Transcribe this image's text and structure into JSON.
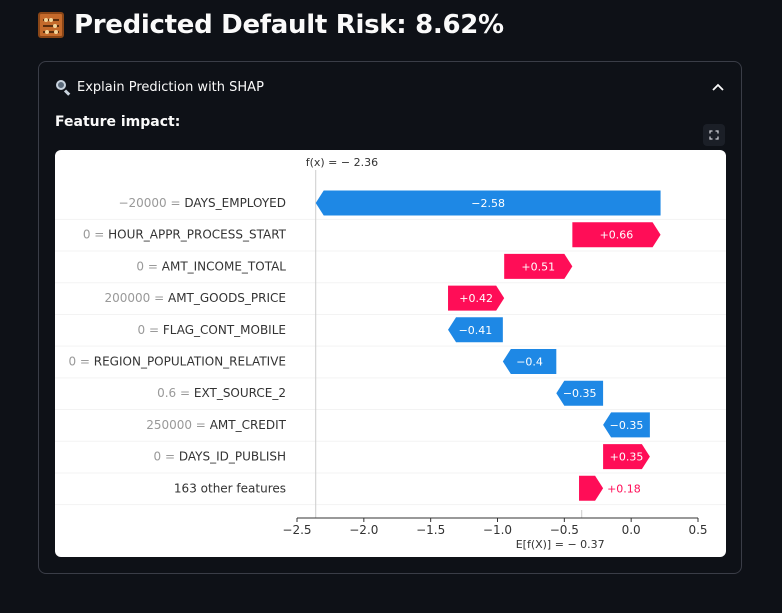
{
  "header": {
    "title": "Predicted Default Risk: 8.62%",
    "icon": "abacus-icon"
  },
  "expander": {
    "label": "Explain Prediction with SHAP",
    "icon": "magnifier-icon",
    "expanded": true,
    "toggle_icon": "chevron-up-icon"
  },
  "section": {
    "label": "Feature impact:",
    "fullscreen_icon": "fullscreen-icon"
  },
  "chart_data": {
    "type": "waterfall",
    "fx_label": "f(x) = − 2.36",
    "efx_label": "E[f(X)] = − 0.37",
    "fx": -2.36,
    "base_value": -0.37,
    "xlim": [
      -2.5,
      0.5
    ],
    "xticks": [
      -2.5,
      -2.0,
      -1.5,
      -1.0,
      -0.5,
      0.0,
      0.5
    ],
    "xtick_labels": [
      "−2.5",
      "−2.0",
      "−1.5",
      "−1.0",
      "−0.5",
      "0.0",
      "0.5"
    ],
    "grid": false,
    "colors": {
      "positive": "#ff0d57",
      "negative": "#1e88e5",
      "axis": "#333333",
      "muted": "#999999"
    },
    "features": [
      {
        "value": "−20000",
        "name": "DAYS_EMPLOYED",
        "shap": -2.58,
        "label": "−2.58"
      },
      {
        "value": "0",
        "name": "HOUR_APPR_PROCESS_START",
        "shap": 0.66,
        "label": "+0.66"
      },
      {
        "value": "0",
        "name": "AMT_INCOME_TOTAL",
        "shap": 0.51,
        "label": "+0.51"
      },
      {
        "value": "200000",
        "name": "AMT_GOODS_PRICE",
        "shap": 0.42,
        "label": "+0.42"
      },
      {
        "value": "0",
        "name": "FLAG_CONT_MOBILE",
        "shap": -0.41,
        "label": "−0.41"
      },
      {
        "value": "0",
        "name": "REGION_POPULATION_RELATIVE",
        "shap": -0.4,
        "label": "−0.4"
      },
      {
        "value": "0.6",
        "name": "EXT_SOURCE_2",
        "shap": -0.35,
        "label": "−0.35"
      },
      {
        "value": "250000",
        "name": "AMT_CREDIT",
        "shap": -0.35,
        "label": "−0.35"
      },
      {
        "value": "0",
        "name": "DAYS_ID_PUBLISH",
        "shap": 0.35,
        "label": "+0.35"
      },
      {
        "value": "",
        "name": "163 other features",
        "shap": 0.18,
        "label": "+0.18"
      }
    ]
  }
}
